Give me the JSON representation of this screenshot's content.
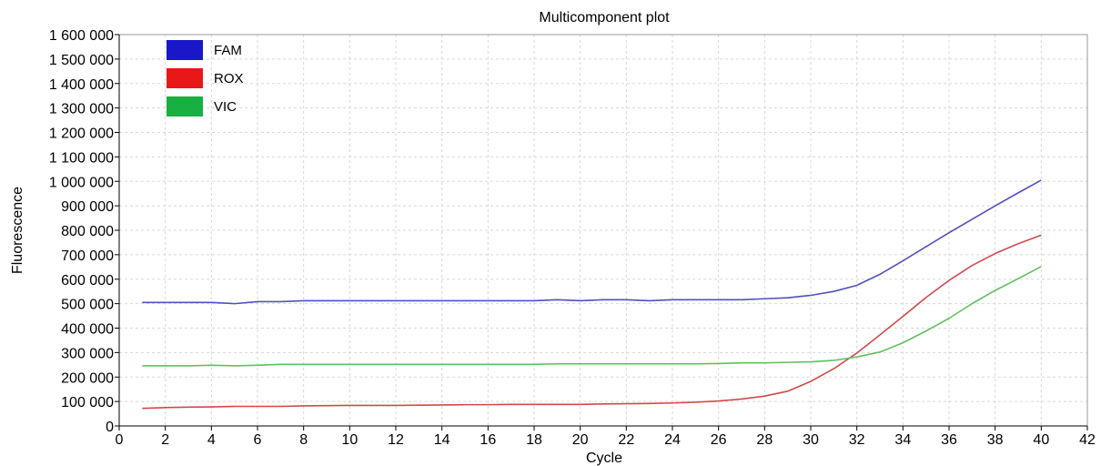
{
  "chart_data": {
    "type": "line",
    "title": "Multicomponent plot",
    "xlabel": "Cycle",
    "ylabel": "Fluorescence",
    "xlim": [
      0,
      42
    ],
    "ylim": [
      0,
      1600000
    ],
    "x_ticks": [
      0,
      2,
      4,
      6,
      8,
      10,
      12,
      14,
      16,
      18,
      20,
      22,
      24,
      26,
      28,
      30,
      32,
      34,
      36,
      38,
      40,
      42
    ],
    "x_tick_labels": [
      "0",
      "2",
      "4",
      "6",
      "8",
      "10",
      "12",
      "14",
      "16",
      "18",
      "20",
      "22",
      "24",
      "26",
      "28",
      "30",
      "32",
      "34",
      "36",
      "38",
      "40",
      "42"
    ],
    "y_ticks": [
      0,
      100000,
      200000,
      300000,
      400000,
      500000,
      600000,
      700000,
      800000,
      900000,
      1000000,
      1100000,
      1200000,
      1300000,
      1400000,
      1500000,
      1600000
    ],
    "y_tick_labels": [
      "0",
      "100 000",
      "200 000",
      "300 000",
      "400 000",
      "500 000",
      "600 000",
      "700 000",
      "800 000",
      "900 000",
      "1 000 000",
      "1 100 000",
      "1 200 000",
      "1 300 000",
      "1 400 000",
      "1 500 000",
      "1 600 000"
    ],
    "grid": true,
    "legend_position": "top-left",
    "x": [
      1,
      2,
      3,
      4,
      5,
      6,
      7,
      8,
      9,
      10,
      11,
      12,
      13,
      14,
      15,
      16,
      17,
      18,
      19,
      20,
      21,
      22,
      23,
      24,
      25,
      26,
      27,
      28,
      29,
      30,
      31,
      32,
      33,
      34,
      35,
      36,
      37,
      38,
      39,
      40
    ],
    "series": [
      {
        "name": "FAM",
        "color": "#5050c0",
        "legend_color": "#1818c8",
        "values": [
          505000,
          505000,
          505000,
          505000,
          500000,
          508000,
          508000,
          512000,
          512000,
          512000,
          512000,
          512000,
          512000,
          512000,
          512000,
          512000,
          512000,
          512000,
          516000,
          512000,
          516000,
          516000,
          512000,
          516000,
          516000,
          516000,
          516000,
          520000,
          524000,
          534000,
          550000,
          575000,
          620000,
          675000,
          733000,
          790000,
          845000,
          900000,
          953000,
          1005000
        ]
      },
      {
        "name": "ROX",
        "color": "#d04a4a",
        "legend_color": "#e81818",
        "values": [
          72000,
          75000,
          77000,
          78000,
          80000,
          80000,
          80000,
          82000,
          83000,
          84000,
          84000,
          84000,
          85000,
          86000,
          87000,
          87000,
          88000,
          88000,
          88000,
          88000,
          90000,
          91000,
          92000,
          94000,
          97000,
          102000,
          110000,
          122000,
          142000,
          182000,
          234000,
          298000,
          372000,
          448000,
          525000,
          595000,
          656000,
          705000,
          745000,
          780000
        ]
      },
      {
        "name": "VIC",
        "color": "#60c060",
        "legend_color": "#18b040",
        "values": [
          246000,
          246000,
          246000,
          248000,
          246000,
          248000,
          252000,
          252000,
          252000,
          252000,
          252000,
          252000,
          252000,
          252000,
          252000,
          252000,
          252000,
          252000,
          254000,
          254000,
          254000,
          254000,
          254000,
          254000,
          254000,
          255000,
          258000,
          258000,
          260000,
          262000,
          268000,
          282000,
          302000,
          340000,
          388000,
          440000,
          500000,
          554000,
          602000,
          652000
        ]
      }
    ]
  }
}
